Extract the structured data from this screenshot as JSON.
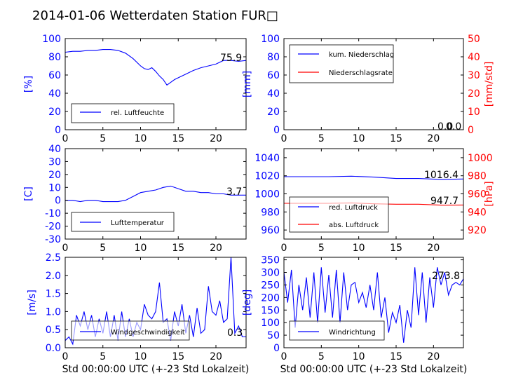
{
  "figure": {
    "title": "2014-01-06 Wetterdaten Station FUR",
    "title_glyph": "□",
    "xlabel": "Std 00:00:00 UTC (+-23 Std Lokalzeit)"
  },
  "colors": {
    "primary": "#0000ff",
    "secondary": "#ff0000",
    "axis": "#000000",
    "background": "#ffffff"
  },
  "chart_data": [
    {
      "id": "humidity",
      "type": "line",
      "ylabel": "[%]",
      "xlim": [
        0,
        24
      ],
      "ylim": [
        0,
        100
      ],
      "yticks": [
        0,
        20,
        40,
        60,
        80,
        100
      ],
      "xticks": [
        0,
        5,
        10,
        15,
        20
      ],
      "annotation": "75.9",
      "legend": {
        "placement": "lower-left"
      },
      "series": [
        {
          "name": "rel. Luftfeuchte",
          "color": "#0000ff",
          "x": [
            0,
            1,
            2,
            3,
            4,
            5,
            6,
            7,
            8,
            9,
            10,
            10.5,
            11,
            11.5,
            12,
            12.5,
            13,
            13.5,
            14,
            14.5,
            15,
            16,
            17,
            18,
            19,
            20,
            21,
            22,
            23,
            24
          ],
          "y": [
            85,
            86,
            86,
            87,
            87,
            88,
            88,
            87,
            84,
            78,
            70,
            67,
            66,
            68,
            64,
            59,
            55,
            49,
            52,
            55,
            57,
            61,
            65,
            68,
            70,
            72,
            76,
            76,
            75,
            76
          ]
        }
      ]
    },
    {
      "id": "precipitation",
      "type": "line",
      "ylabel": "[mm]",
      "ylabel2": "[mm/std]",
      "xlim": [
        0,
        24
      ],
      "ylim": [
        0,
        100
      ],
      "ylim2": [
        0,
        50
      ],
      "yticks": [
        0,
        20,
        40,
        60,
        80,
        100
      ],
      "yticks2": [
        0,
        10,
        20,
        30,
        40,
        50
      ],
      "xticks": [
        0,
        5,
        10,
        15,
        20
      ],
      "annotations": [
        "0.0",
        "0.0"
      ],
      "legend": {
        "placement": "upper-left"
      },
      "series": [
        {
          "name": "kum. Niederschlag",
          "color": "#0000ff",
          "x": [
            0,
            24
          ],
          "y": [
            0,
            0
          ]
        },
        {
          "name": "Niederschlagsrate",
          "color": "#ff0000",
          "axis": "right",
          "x": [
            0,
            24
          ],
          "y": [
            0,
            0
          ]
        }
      ]
    },
    {
      "id": "temperature",
      "type": "line",
      "ylabel": "[C]",
      "xlim": [
        0,
        24
      ],
      "ylim": [
        -30,
        40
      ],
      "yticks": [
        -30,
        -20,
        -10,
        0,
        10,
        20,
        30,
        40
      ],
      "xticks": [
        0,
        5,
        10,
        15,
        20
      ],
      "annotation": "3.7",
      "legend": {
        "placement": "lower-left"
      },
      "series": [
        {
          "name": "Lufttemperatur",
          "color": "#0000ff",
          "x": [
            0,
            1,
            2,
            3,
            4,
            5,
            6,
            7,
            8,
            9,
            10,
            11,
            12,
            13,
            14,
            15,
            16,
            17,
            18,
            19,
            20,
            21,
            22,
            23,
            24
          ],
          "y": [
            0,
            0,
            -1,
            0,
            0,
            -1,
            -1,
            -1,
            0,
            3,
            6,
            7,
            8,
            10,
            11,
            9,
            7,
            7,
            6,
            6,
            5,
            5,
            4,
            4,
            4
          ]
        }
      ]
    },
    {
      "id": "pressure",
      "type": "line",
      "ylabel2": "[hPa]",
      "xlim": [
        0,
        24
      ],
      "ylim": [
        950,
        1050
      ],
      "ylim2": [
        910,
        1010
      ],
      "yticks": [
        960,
        980,
        1000,
        1020,
        1040
      ],
      "yticks2": [
        920,
        940,
        960,
        980,
        1000
      ],
      "xticks": [
        0,
        5,
        10,
        15,
        20
      ],
      "annotations": [
        "1016.4",
        "947.7"
      ],
      "legend": {
        "placement": "lower-left"
      },
      "series": [
        {
          "name": "red. Luftdruck",
          "color": "#0000ff",
          "x": [
            0,
            3,
            6,
            9,
            12,
            15,
            18,
            21,
            24
          ],
          "y": [
            1019,
            1019,
            1019,
            1019.5,
            1018.5,
            1017,
            1017,
            1016,
            1016.4
          ]
        },
        {
          "name": "abs. Luftdruck",
          "color": "#ff0000",
          "axis": "right",
          "x": [
            0,
            3,
            6,
            9,
            12,
            15,
            18,
            21,
            24
          ],
          "y": [
            949.5,
            949.5,
            949.5,
            950,
            949,
            948.5,
            948.5,
            947.5,
            947.7
          ]
        }
      ]
    },
    {
      "id": "wind_speed",
      "type": "line",
      "ylabel": "[m/s]",
      "xlim": [
        0,
        24
      ],
      "ylim": [
        0,
        2.5
      ],
      "yticks": [
        0.0,
        0.5,
        1.0,
        1.5,
        2.0,
        2.5
      ],
      "xticks": [
        0,
        5,
        10,
        15,
        20
      ],
      "annotation": "0.3",
      "legend": {
        "placement": "lower-left"
      },
      "series": [
        {
          "name": "Windgeschwindigkeit",
          "color": "#0000ff",
          "x": [
            0,
            0.5,
            1,
            1.5,
            2,
            2.5,
            3,
            3.5,
            4,
            4.5,
            5,
            5.5,
            6,
            6.5,
            7,
            7.5,
            8,
            8.5,
            9,
            9.5,
            10,
            10.5,
            11,
            11.5,
            12,
            12.5,
            13,
            13.5,
            14,
            14.5,
            15,
            15.5,
            16,
            16.5,
            17,
            17.5,
            18,
            18.5,
            19,
            19.5,
            20,
            20.5,
            21,
            21.5,
            22,
            22.5,
            23,
            23.5,
            24
          ],
          "y": [
            0.2,
            0.3,
            0.1,
            0.9,
            0.6,
            1.0,
            0.5,
            0.9,
            0.3,
            0.8,
            0.4,
            1.0,
            0.3,
            0.9,
            0.2,
            1.0,
            0.3,
            0.8,
            0.3,
            0.7,
            0.5,
            1.2,
            0.9,
            0.8,
            1.0,
            1.8,
            0.7,
            0.8,
            0.2,
            1.0,
            0.6,
            1.2,
            0.4,
            0.9,
            0.3,
            1.1,
            0.4,
            0.5,
            1.7,
            1.0,
            0.9,
            1.3,
            0.7,
            0.8,
            2.5,
            0.4,
            0.6,
            0.3,
            0.3
          ]
        }
      ]
    },
    {
      "id": "wind_direction",
      "type": "line",
      "ylabel": "[deg]",
      "xlim": [
        0,
        24
      ],
      "ylim": [
        0,
        360
      ],
      "yticks": [
        0,
        50,
        100,
        150,
        200,
        250,
        300,
        350
      ],
      "xticks": [
        0,
        5,
        10,
        15,
        20
      ],
      "annotation": "273.8",
      "legend": {
        "placement": "lower-left"
      },
      "series": [
        {
          "name": "Windrichtung",
          "color": "#0000ff",
          "x": [
            0,
            0.5,
            1,
            1.5,
            2,
            2.5,
            3,
            3.5,
            4,
            4.5,
            5,
            5.5,
            6,
            6.5,
            7,
            7.5,
            8,
            8.5,
            9,
            9.5,
            10,
            10.5,
            11,
            11.5,
            12,
            12.5,
            13,
            13.5,
            14,
            14.5,
            15,
            15.5,
            16,
            16.5,
            17,
            17.5,
            18,
            18.5,
            19,
            19.5,
            20,
            20.5,
            21,
            21.5,
            22,
            22.5,
            23,
            23.5,
            24
          ],
          "y": [
            300,
            180,
            310,
            80,
            250,
            150,
            280,
            120,
            300,
            100,
            320,
            140,
            290,
            120,
            310,
            100,
            300,
            150,
            250,
            260,
            180,
            220,
            160,
            250,
            150,
            300,
            120,
            200,
            60,
            140,
            100,
            170,
            20,
            150,
            80,
            320,
            130,
            300,
            100,
            280,
            160,
            320,
            250,
            300,
            210,
            250,
            260,
            250,
            274
          ]
        }
      ]
    }
  ]
}
